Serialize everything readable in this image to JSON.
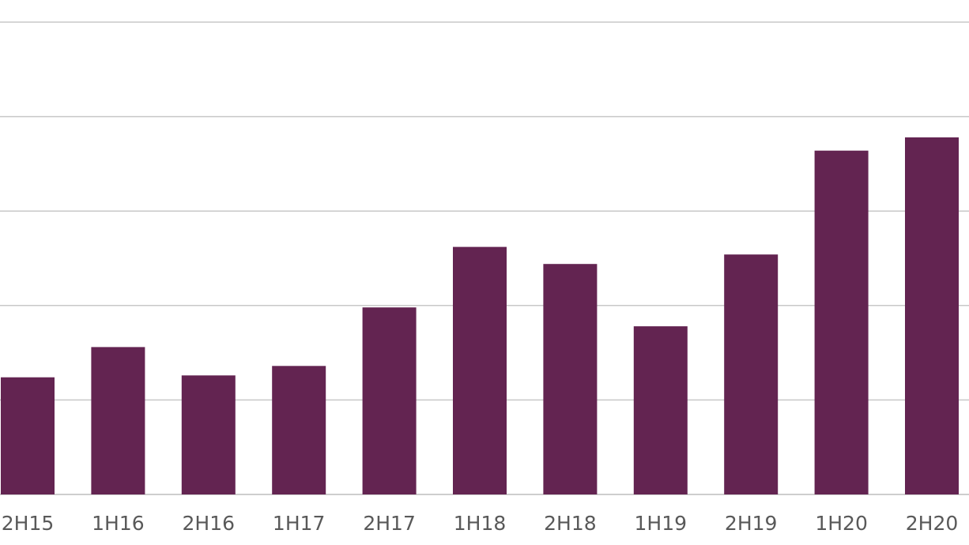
{
  "chart_data": {
    "type": "bar",
    "categories": [
      "2H15",
      "1H16",
      "2H16",
      "1H17",
      "2H17",
      "1H18",
      "2H18",
      "1H19",
      "2H19",
      "1H20",
      "2H20"
    ],
    "values": [
      1.24,
      1.56,
      1.26,
      1.36,
      1.98,
      2.62,
      2.44,
      1.78,
      2.54,
      3.64,
      3.78
    ],
    "ylim": [
      0,
      5
    ],
    "grid": true,
    "title": "",
    "xlabel": "",
    "ylabel": "",
    "colors": {
      "bar": "#632451",
      "grid": "#c8c8c8",
      "tick_text": "#595959"
    }
  }
}
